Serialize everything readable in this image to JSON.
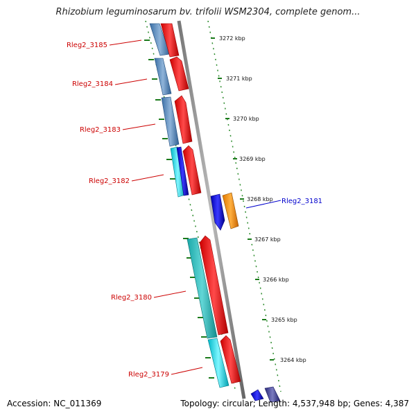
{
  "header": {
    "title": "Rhizobium leguminosarum bv. trifolii WSM2304, complete genom..."
  },
  "footer": {
    "accession": "Accession: NC_011369",
    "summary": "Topology: circular; Length: 4,537,948 bp; Genes: 4,387"
  },
  "colors": {
    "reverse_gene": "#d40000",
    "forward_gene": "#0000cc",
    "backbone": "#8c8c8c",
    "tick": "#1a7a1a",
    "dotted_frame": "#2a8a2a"
  },
  "scale_labels": [
    "3272 kbp",
    "3271 kbp",
    "3270 kbp",
    "3269 kbp",
    "3268 kbp",
    "3267 kbp",
    "3266 kbp",
    "3265 kbp",
    "3264 kbp"
  ],
  "genes": [
    {
      "label": "Rleg2_3185",
      "side": "reverse"
    },
    {
      "label": "Rleg2_3184",
      "side": "reverse"
    },
    {
      "label": "Rleg2_3183",
      "side": "reverse"
    },
    {
      "label": "Rleg2_3182",
      "side": "reverse"
    },
    {
      "label": "Rleg2_3181",
      "side": "forward"
    },
    {
      "label": "Rleg2_3180",
      "side": "reverse"
    },
    {
      "label": "Rleg2_3179",
      "side": "reverse"
    }
  ]
}
